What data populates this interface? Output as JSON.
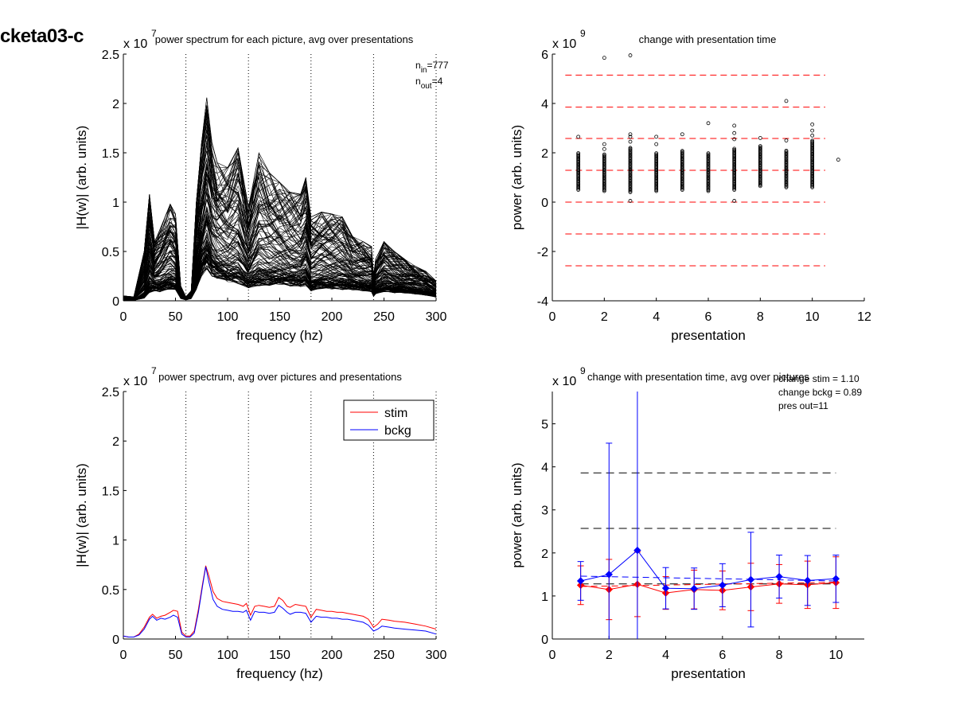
{
  "figure_title": "cketa03-c",
  "colors": {
    "stim": "#ff0000",
    "bckg": "#0000ff",
    "axis": "#000000",
    "threshold_red": "#ff0000",
    "threshold_black": "#000000"
  },
  "chart_data": [
    {
      "id": "p1",
      "type": "line",
      "title": "power spectrum for each picture, avg over presentations",
      "xlabel": "frequency (hz)",
      "ylabel": "|H(w)| (arb. units)",
      "y_multiplier": "x 10",
      "y_multiplier_exp": "7",
      "xlim": [
        0,
        300
      ],
      "ylim": [
        0,
        2.5
      ],
      "xticks": [
        0,
        50,
        100,
        150,
        200,
        250,
        300
      ],
      "yticks": [
        0,
        0.5,
        1,
        1.5,
        2,
        2.5
      ],
      "ytick_labels": [
        "0",
        "0.5",
        "1",
        "1.5",
        "2",
        "2.5"
      ],
      "vlines": [
        60,
        120,
        180,
        240,
        300
      ],
      "annotation": {
        "n_in_prefix": "n",
        "n_in_sub": "in",
        "n_in_value": "=777",
        "n_out_prefix": "n",
        "n_out_sub": "out",
        "n_out_value": "=4"
      },
      "series_count": 140,
      "frequency": [
        0,
        10,
        20,
        25,
        30,
        35,
        40,
        45,
        50,
        55,
        60,
        65,
        70,
        75,
        80,
        85,
        90,
        100,
        110,
        120,
        130,
        140,
        150,
        160,
        170,
        175,
        180,
        190,
        200,
        210,
        220,
        230,
        238,
        240,
        242,
        250,
        260,
        270,
        280,
        290,
        300
      ],
      "envelope_typical": [
        0.02,
        0.01,
        0.06,
        0.18,
        0.22,
        0.2,
        0.24,
        0.26,
        0.24,
        0.05,
        0.02,
        0.05,
        0.25,
        0.55,
        0.7,
        0.55,
        0.5,
        0.42,
        0.38,
        0.28,
        0.33,
        0.34,
        0.36,
        0.33,
        0.31,
        0.34,
        0.22,
        0.27,
        0.26,
        0.25,
        0.24,
        0.22,
        0.2,
        0.1,
        0.15,
        0.2,
        0.18,
        0.17,
        0.15,
        0.12,
        0.08
      ],
      "envelope_max": [
        0.05,
        0.04,
        0.5,
        1.08,
        0.6,
        0.72,
        0.85,
        0.98,
        0.88,
        0.15,
        0.04,
        0.1,
        1.0,
        1.6,
        2.06,
        1.6,
        1.4,
        1.35,
        1.55,
        0.95,
        1.5,
        1.3,
        1.2,
        1.1,
        1.08,
        1.25,
        0.85,
        0.9,
        0.88,
        0.85,
        0.65,
        0.6,
        0.55,
        0.25,
        0.42,
        0.6,
        0.5,
        0.42,
        0.35,
        0.3,
        0.2
      ]
    },
    {
      "id": "p2",
      "type": "scatter",
      "title": "change with presentation time",
      "xlabel": "presentation",
      "ylabel": "power (arb. units)",
      "y_multiplier": "x 10",
      "y_multiplier_exp": "9",
      "xlim": [
        0,
        12
      ],
      "ylim": [
        -4,
        6
      ],
      "xticks": [
        0,
        2,
        4,
        6,
        8,
        10,
        12
      ],
      "yticks": [
        -4,
        -2,
        0,
        2,
        4,
        6
      ],
      "threshold_lines": [
        5.15,
        3.85,
        2.58,
        1.29,
        0,
        -1.29,
        -2.58
      ],
      "columns": [
        {
          "x": 1,
          "low": 0.5,
          "high": 2.0,
          "outliers": [
            2.65
          ]
        },
        {
          "x": 2,
          "low": 0.45,
          "high": 1.95,
          "outliers": [
            2.15,
            2.35,
            5.85
          ]
        },
        {
          "x": 3,
          "low": 0.4,
          "high": 2.2,
          "outliers": [
            2.45,
            2.65,
            2.75,
            5.95,
            0.05
          ]
        },
        {
          "x": 4,
          "low": 0.45,
          "high": 2.0,
          "outliers": [
            2.35,
            2.65
          ]
        },
        {
          "x": 5,
          "low": 0.5,
          "high": 2.1,
          "outliers": [
            2.75
          ]
        },
        {
          "x": 6,
          "low": 0.45,
          "high": 2.0,
          "outliers": [
            3.2
          ]
        },
        {
          "x": 7,
          "low": 0.5,
          "high": 2.2,
          "outliers": [
            2.55,
            2.8,
            3.1,
            0.05
          ]
        },
        {
          "x": 8,
          "low": 0.65,
          "high": 2.3,
          "outliers": [
            2.6
          ]
        },
        {
          "x": 9,
          "low": 0.6,
          "high": 2.1,
          "outliers": [
            2.5,
            4.1
          ]
        },
        {
          "x": 10,
          "low": 0.6,
          "high": 2.5,
          "outliers": [
            2.7,
            2.9,
            3.15
          ]
        },
        {
          "x": 11,
          "low": null,
          "high": null,
          "outliers": [
            1.72
          ]
        }
      ]
    },
    {
      "id": "p3",
      "type": "line",
      "title": "power spectrum, avg over pictures and presentations",
      "xlabel": "frequency (hz)",
      "ylabel": "|H(w)| (arb. units)",
      "y_multiplier": "x 10",
      "y_multiplier_exp": "7",
      "xlim": [
        0,
        300
      ],
      "ylim": [
        0,
        2.5
      ],
      "xticks": [
        0,
        50,
        100,
        150,
        200,
        250,
        300
      ],
      "yticks": [
        0,
        0.5,
        1,
        1.5,
        2,
        2.5
      ],
      "ytick_labels": [
        "0",
        "0.5",
        "1",
        "1.5",
        "2",
        "2.5"
      ],
      "vlines": [
        60,
        120,
        180,
        240,
        300
      ],
      "legend": {
        "position": "top-right",
        "entries": [
          "stim",
          "bckg"
        ]
      },
      "x": [
        0,
        5,
        10,
        15,
        20,
        25,
        28,
        32,
        36,
        40,
        45,
        48,
        52,
        56,
        60,
        64,
        68,
        72,
        76,
        79,
        82,
        86,
        90,
        95,
        100,
        105,
        110,
        115,
        118,
        122,
        126,
        130,
        135,
        140,
        145,
        149,
        153,
        157,
        160,
        165,
        170,
        175,
        180,
        185,
        190,
        195,
        200,
        205,
        210,
        215,
        220,
        225,
        230,
        235,
        240,
        244,
        248,
        255,
        260,
        270,
        280,
        290,
        300
      ],
      "series": [
        {
          "name": "stim",
          "values": [
            0.03,
            0.02,
            0.02,
            0.05,
            0.12,
            0.22,
            0.25,
            0.21,
            0.23,
            0.24,
            0.27,
            0.29,
            0.28,
            0.07,
            0.03,
            0.03,
            0.08,
            0.3,
            0.56,
            0.74,
            0.64,
            0.48,
            0.41,
            0.38,
            0.37,
            0.36,
            0.35,
            0.33,
            0.36,
            0.24,
            0.33,
            0.34,
            0.33,
            0.32,
            0.33,
            0.42,
            0.39,
            0.33,
            0.32,
            0.35,
            0.34,
            0.33,
            0.22,
            0.3,
            0.29,
            0.28,
            0.28,
            0.27,
            0.27,
            0.26,
            0.25,
            0.24,
            0.23,
            0.2,
            0.12,
            0.15,
            0.2,
            0.19,
            0.18,
            0.17,
            0.15,
            0.13,
            0.1
          ]
        },
        {
          "name": "bckg",
          "values": [
            0.03,
            0.02,
            0.02,
            0.04,
            0.1,
            0.2,
            0.23,
            0.19,
            0.21,
            0.2,
            0.22,
            0.24,
            0.22,
            0.05,
            0.02,
            0.02,
            0.06,
            0.27,
            0.54,
            0.73,
            0.58,
            0.4,
            0.33,
            0.3,
            0.29,
            0.28,
            0.28,
            0.27,
            0.29,
            0.19,
            0.28,
            0.27,
            0.27,
            0.26,
            0.27,
            0.34,
            0.31,
            0.27,
            0.25,
            0.27,
            0.27,
            0.26,
            0.17,
            0.23,
            0.22,
            0.22,
            0.21,
            0.21,
            0.2,
            0.2,
            0.19,
            0.18,
            0.17,
            0.14,
            0.08,
            0.1,
            0.13,
            0.12,
            0.11,
            0.1,
            0.09,
            0.08,
            0.05
          ]
        }
      ]
    },
    {
      "id": "p4",
      "type": "line",
      "title": "change with presentation time, avg over pictures",
      "xlabel": "presentation",
      "ylabel": "power (arb. units)",
      "y_multiplier": "x 10",
      "y_multiplier_exp": "9",
      "xlim": [
        0,
        11
      ],
      "ylim": [
        0,
        5.75
      ],
      "xticks": [
        0,
        2,
        4,
        6,
        8,
        10
      ],
      "yticks": [
        0,
        1,
        2,
        3,
        4,
        5
      ],
      "threshold_lines": [
        3.86,
        2.57,
        1.28
      ],
      "annotations": [
        "change stim = 1.10",
        "change bckg = 0.89",
        "pres out=11"
      ],
      "x": [
        1,
        2,
        3,
        4,
        5,
        6,
        7,
        8,
        9,
        10
      ],
      "series": [
        {
          "name": "stim",
          "values": [
            1.25,
            1.15,
            1.27,
            1.07,
            1.15,
            1.13,
            1.21,
            1.28,
            1.26,
            1.31
          ],
          "err": [
            0.45,
            0.7,
            0.75,
            0.38,
            0.45,
            0.45,
            0.55,
            0.45,
            0.55,
            0.6
          ],
          "fit": [
            1.22,
            1.32
          ]
        },
        {
          "name": "bckg",
          "values": [
            1.35,
            1.5,
            2.06,
            1.18,
            1.17,
            1.25,
            1.38,
            1.45,
            1.36,
            1.4
          ],
          "err": [
            0.45,
            3.05,
            3.75,
            0.48,
            0.48,
            0.5,
            1.1,
            0.5,
            0.58,
            0.55
          ],
          "fit": [
            1.46,
            1.35
          ]
        }
      ]
    }
  ]
}
